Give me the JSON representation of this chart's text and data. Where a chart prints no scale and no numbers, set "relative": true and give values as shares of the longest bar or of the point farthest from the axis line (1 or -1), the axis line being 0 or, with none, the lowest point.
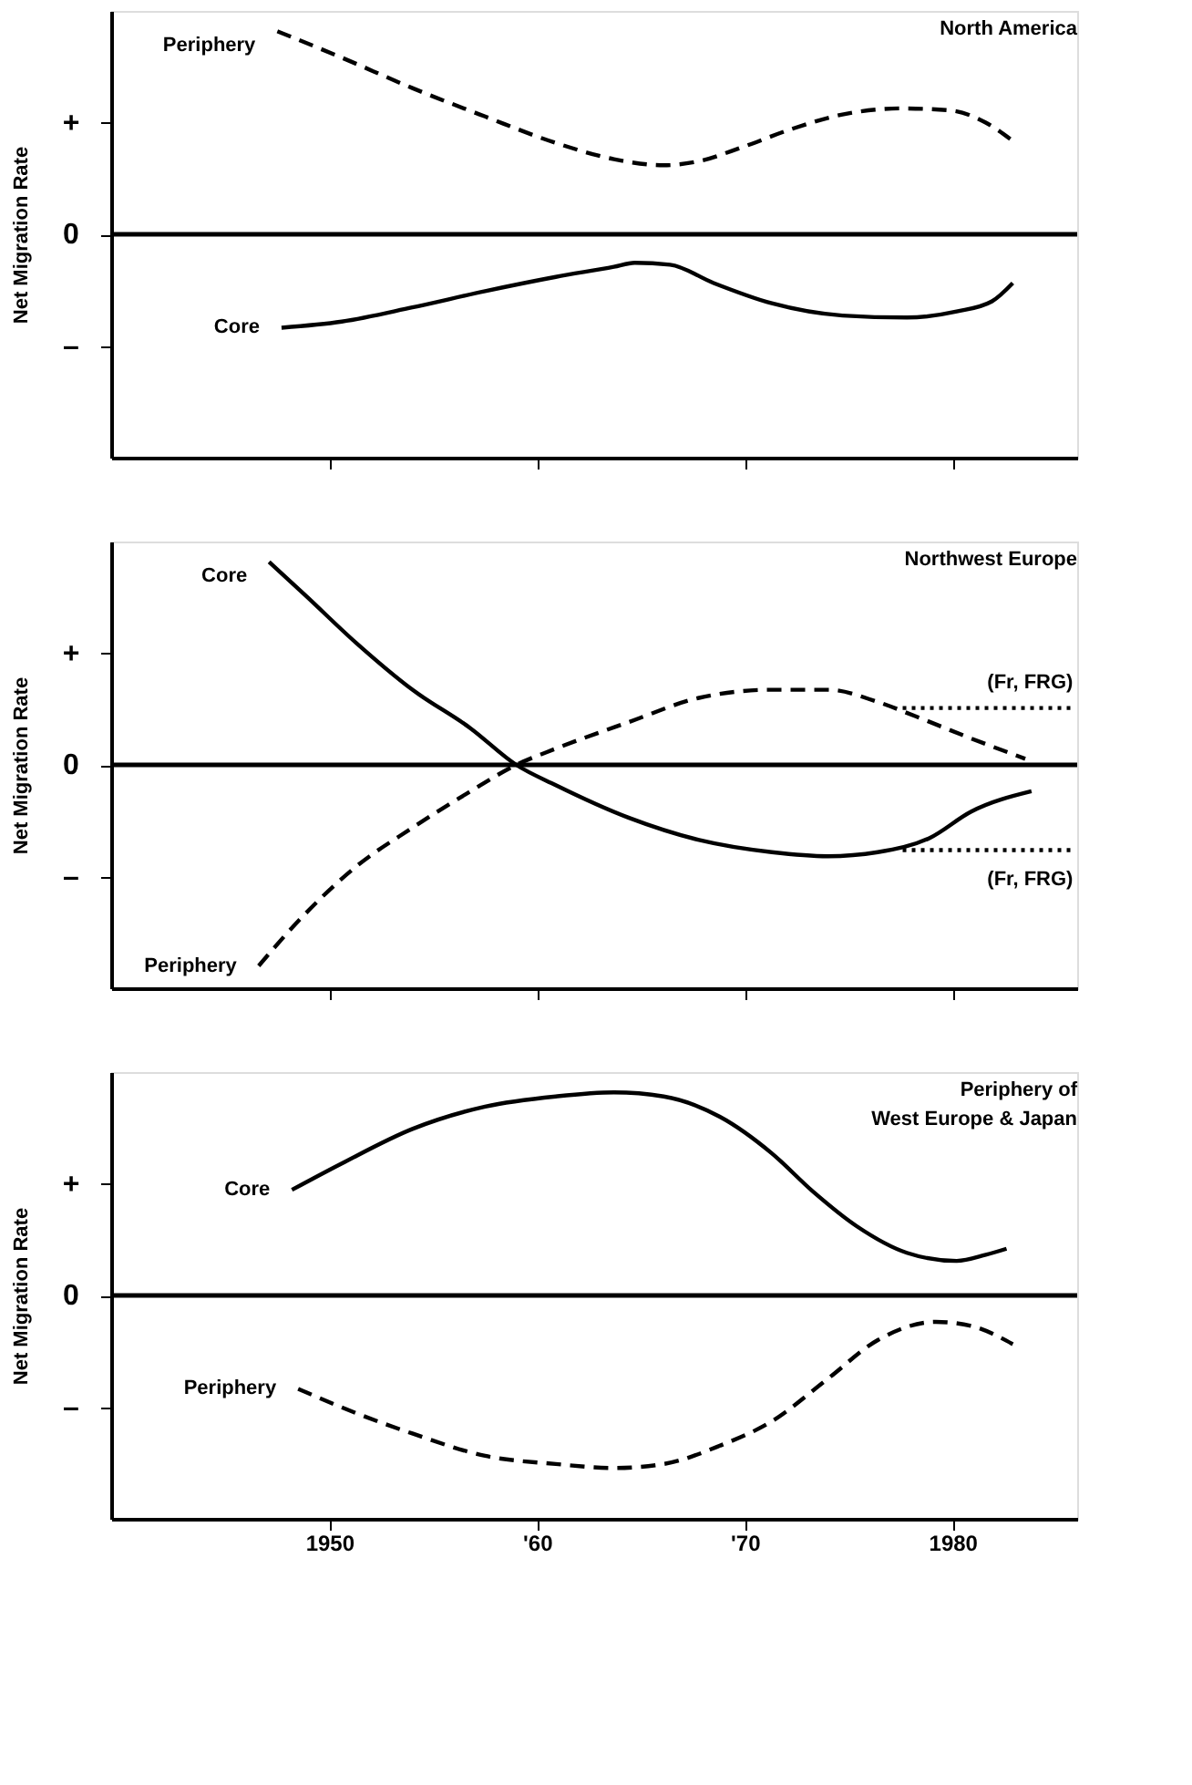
{
  "chart_data": [
    {
      "type": "line",
      "title": "North America",
      "ylabel": "Net Migration Rate",
      "relative": true,
      "legend": false,
      "grid": false,
      "tick_labels": false,
      "xlim": [
        1939.5,
        1986
      ],
      "xticks": [
        1950,
        1960,
        1970,
        1980
      ],
      "annotations": [
        "+",
        "0",
        "–"
      ],
      "ref_lines": [
        {
          "axis": "y",
          "value": 0,
          "color": "#000000"
        }
      ],
      "series": [
        {
          "name": "Periphery",
          "color": "#000000",
          "line_style": "dashed",
          "x": [
            1947.5,
            1950.6,
            1954.0,
            1957.5,
            1960.9,
            1963.7,
            1966.1,
            1967.8,
            1969.9,
            1972.3,
            1974.7,
            1977.5,
            1979.9,
            1981.6,
            1982.9
          ],
          "values": [
            1,
            0.87,
            0.72,
            0.58,
            0.45,
            0.37,
            0.34,
            0.36,
            0.43,
            0.52,
            0.59,
            0.62,
            0.61,
            0.55,
            0.46
          ]
        },
        {
          "name": "Core",
          "color": "#000000",
          "line_style": "solid",
          "x": [
            1947.7,
            1950.6,
            1954.0,
            1957.5,
            1960.9,
            1963.7,
            1964.7,
            1966.4,
            1968.5,
            1971.3,
            1974.7,
            1977.8,
            1980.2,
            1981.9,
            1982.9
          ],
          "values": [
            -0.46,
            -0.43,
            -0.36,
            -0.28,
            -0.21,
            -0.16,
            -0.14,
            -0.15,
            -0.24,
            -0.34,
            -0.4,
            -0.41,
            -0.38,
            -0.33,
            -0.24
          ]
        }
      ]
    },
    {
      "type": "line",
      "title": "Northwest Europe",
      "ylabel": "Net Migration Rate",
      "relative": true,
      "legend": false,
      "grid": false,
      "tick_labels": false,
      "xlim": [
        1939.5,
        1986
      ],
      "xticks": [
        1950,
        1960,
        1970,
        1980
      ],
      "annotations": [
        "+",
        "0",
        "–"
      ],
      "ref_lines": [
        {
          "axis": "y",
          "value": 0,
          "color": "#000000"
        }
      ],
      "series": [
        {
          "name": "Core",
          "color": "#000000",
          "line_style": "solid",
          "x": [
            1947.1,
            1948.9,
            1951.3,
            1954.0,
            1956.8,
            1959.0,
            1960.9,
            1964.4,
            1967.8,
            1971.3,
            1974.0,
            1976.4,
            1978.9,
            1980.9,
            1983.8
          ],
          "values": [
            1,
            0.83,
            0.6,
            0.37,
            0.18,
            0,
            -0.1,
            -0.26,
            -0.37,
            -0.43,
            -0.45,
            -0.43,
            -0.36,
            -0.23,
            -0.13
          ]
        },
        {
          "name": "Periphery",
          "color": "#000000",
          "line_style": "dashed",
          "x": [
            1946.6,
            1948.5,
            1951.3,
            1954.0,
            1956.8,
            1959.0,
            1960.9,
            1964.4,
            1967.8,
            1971.3,
            1974.0,
            1976.4,
            1978.2,
            1980.9,
            1983.5
          ],
          "values": [
            -0.99,
            -0.77,
            -0.5,
            -0.31,
            -0.13,
            0,
            0.08,
            0.21,
            0.33,
            0.37,
            0.37,
            0.31,
            0.24,
            0.13,
            0.03
          ]
        },
        {
          "name": "(Fr, FRG)",
          "color": "#000000",
          "line_style": "dotted",
          "x": [
            1977.6,
            1985.8
          ],
          "values": [
            0.28,
            0.28
          ]
        },
        {
          "name": "(Fr, FRG)",
          "color": "#000000",
          "line_style": "dotted",
          "x": [
            1977.6,
            1985.8
          ],
          "values": [
            -0.42,
            -0.42
          ]
        }
      ]
    },
    {
      "type": "line",
      "title": "Periphery of\nWest Europe & Japan",
      "ylabel": "Net Migration Rate",
      "relative": true,
      "legend": false,
      "grid": false,
      "xlim": [
        1939.5,
        1986
      ],
      "xticks": [
        1950,
        {
          "value": 1960,
          "label": "'60"
        },
        {
          "value": 1970,
          "label": "'70"
        },
        1980
      ],
      "annotations": [
        "+",
        "0",
        "–"
      ],
      "ref_lines": [
        {
          "axis": "y",
          "value": 0,
          "color": "#000000"
        }
      ],
      "series": [
        {
          "name": "Core",
          "color": "#000000",
          "line_style": "solid",
          "x": [
            1948.2,
            1950.6,
            1954.0,
            1957.5,
            1960.9,
            1963.7,
            1966.1,
            1968.8,
            1971.3,
            1973.3,
            1975.4,
            1977.8,
            1980.2,
            1981.6,
            1982.6
          ],
          "values": [
            0.52,
            0.65,
            0.82,
            0.93,
            0.98,
            1,
            0.98,
            0.88,
            0.7,
            0.51,
            0.34,
            0.21,
            0.17,
            0.2,
            0.23
          ]
        },
        {
          "name": "Periphery",
          "color": "#000000",
          "line_style": "dashed",
          "x": [
            1948.5,
            1951.3,
            1954.0,
            1957.5,
            1960.9,
            1963.7,
            1966.1,
            1968.8,
            1971.3,
            1974.0,
            1976.4,
            1979.2,
            1980.9,
            1982.9
          ],
          "values": [
            -0.46,
            -0.58,
            -0.68,
            -0.79,
            -0.83,
            -0.85,
            -0.83,
            -0.74,
            -0.62,
            -0.41,
            -0.22,
            -0.13,
            -0.15,
            -0.24
          ]
        }
      ]
    }
  ]
}
